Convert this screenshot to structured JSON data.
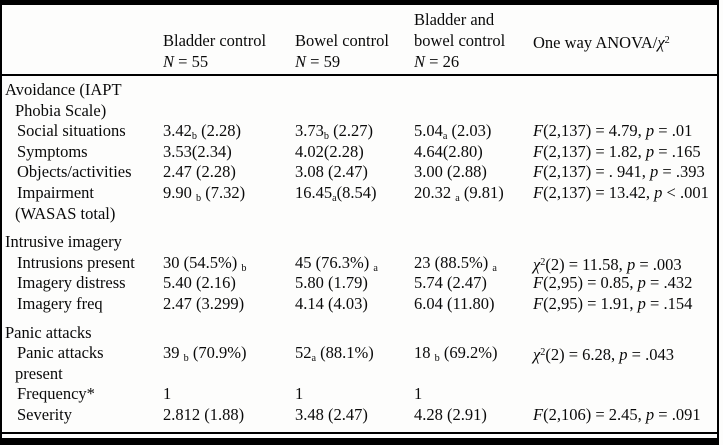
{
  "page": {
    "background": "#fdfdfc",
    "text_color": "#0a0a0a",
    "rule_color": "#000000"
  },
  "table": {
    "title": "group-comparison-statistics",
    "header": {
      "columns": [
        {
          "id": "row-label",
          "lines": [
            "",
            "",
            ""
          ]
        },
        {
          "id": "bladder-control",
          "lines": [
            "",
            "Bladder control",
            "*N* = 55"
          ]
        },
        {
          "id": "bowel-control",
          "lines": [
            "",
            "Bowel control",
            "*N* = 59"
          ]
        },
        {
          "id": "bladder-and-bowel-control",
          "lines": [
            "Bladder and",
            "bowel control",
            "*N* = 26"
          ]
        },
        {
          "id": "one-way-anova-chi-square",
          "lines": [
            "",
            "One way ANOVA/*χ*^{2}",
            ""
          ]
        }
      ]
    },
    "rows": [
      {
        "kind": "section",
        "label_lines": [
          "Avoidance (IAPT",
          "Phobia Scale)"
        ]
      },
      {
        "kind": "data",
        "label_lines": [
          "Social situations"
        ],
        "cells": [
          "3.42_{b} (2.28)",
          "3.73_{b} (2.27)",
          "5.04_{a} (2.03)",
          "*F*(2,137) = 4.79, *p* = .01"
        ]
      },
      {
        "kind": "data",
        "label_lines": [
          "Symptoms"
        ],
        "cells": [
          "3.53(2.34)",
          "4.02(2.28)",
          "4.64(2.80)",
          "*F*(2,137) = 1.82, *p* = .165"
        ]
      },
      {
        "kind": "data",
        "label_lines": [
          "Objects/activities"
        ],
        "cells": [
          "2.47 (2.28)",
          "3.08 (2.47)",
          "3.00 (2.88)",
          "*F*(2,137) = . 941, *p* = .393"
        ]
      },
      {
        "kind": "data",
        "label_lines": [
          "Impairment",
          "(WASAS total)"
        ],
        "cells": [
          "9.90 _{b} (7.32)",
          "16.45_{a}(8.54)",
          "20.32 _{a} (9.81)",
          "*F*(2,137) = 13.42, *p* < .001"
        ]
      },
      {
        "kind": "section",
        "label_lines": [
          "Intrusive imagery"
        ]
      },
      {
        "kind": "data",
        "label_lines": [
          "Intrusions present"
        ],
        "cells": [
          "30 (54.5%) _{b}",
          "45 (76.3%) _{a}",
          "23 (88.5%) _{a}",
          "*χ*^{2}(2) = 11.58, *p* = .003"
        ]
      },
      {
        "kind": "data",
        "label_lines": [
          "Imagery distress"
        ],
        "cells": [
          "5.40 (2.16)",
          "5.80 (1.79)",
          "5.74 (2.47)",
          "*F*(2,95) = 0.85, *p* = .432"
        ]
      },
      {
        "kind": "data",
        "label_lines": [
          "Imagery freq"
        ],
        "cells": [
          "2.47 (3.299)",
          "4.14 (4.03)",
          "6.04 (11.80)",
          "*F*(2,95) = 1.91, *p* = .154"
        ]
      },
      {
        "kind": "section",
        "label_lines": [
          "Panic attacks"
        ]
      },
      {
        "kind": "data",
        "label_lines": [
          "Panic attacks",
          "present"
        ],
        "cells": [
          "39 _{b} (70.9%)",
          "52_{a} (88.1%)",
          "18 _{b} (69.2%)",
          "*χ*^{2}(2) = 6.28, *p* = .043"
        ]
      },
      {
        "kind": "data",
        "label_lines": [
          "Frequency*"
        ],
        "cells": [
          "1",
          "1",
          "1",
          ""
        ]
      },
      {
        "kind": "data",
        "label_lines": [
          "Severity"
        ],
        "cells": [
          "2.812 (1.88)",
          "3.48 (2.47)",
          "4.28 (2.91)",
          "*F*(2,106) = 2.45, *p* = .091"
        ]
      }
    ]
  }
}
